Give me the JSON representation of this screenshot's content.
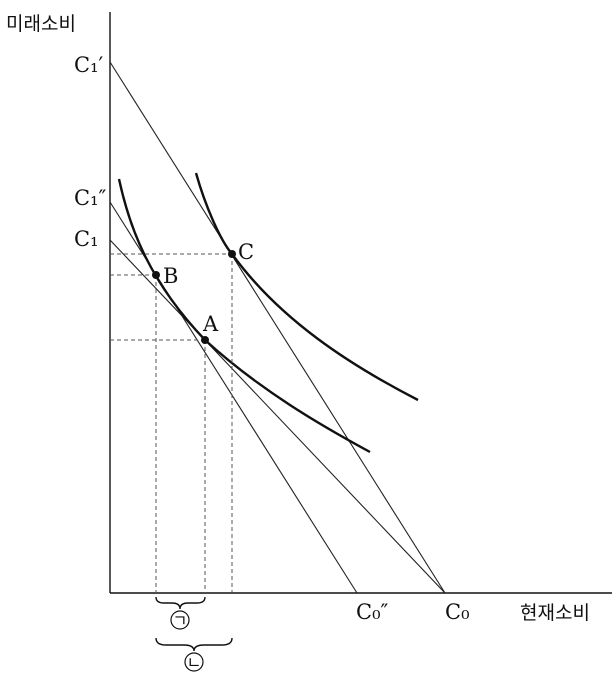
{
  "axes": {
    "y_label": "미래소비",
    "x_label": "현재소비"
  },
  "y_labels": {
    "c1_prime": "C₁′",
    "c1_double_prime": "C₁″",
    "c1": "C₁"
  },
  "x_labels": {
    "c0_double_prime": "C₀″",
    "c0": "C₀"
  },
  "points": {
    "a": "A",
    "b": "B",
    "c": "C"
  },
  "brackets": {
    "first": "ㄱ",
    "second": "ㄴ"
  }
}
